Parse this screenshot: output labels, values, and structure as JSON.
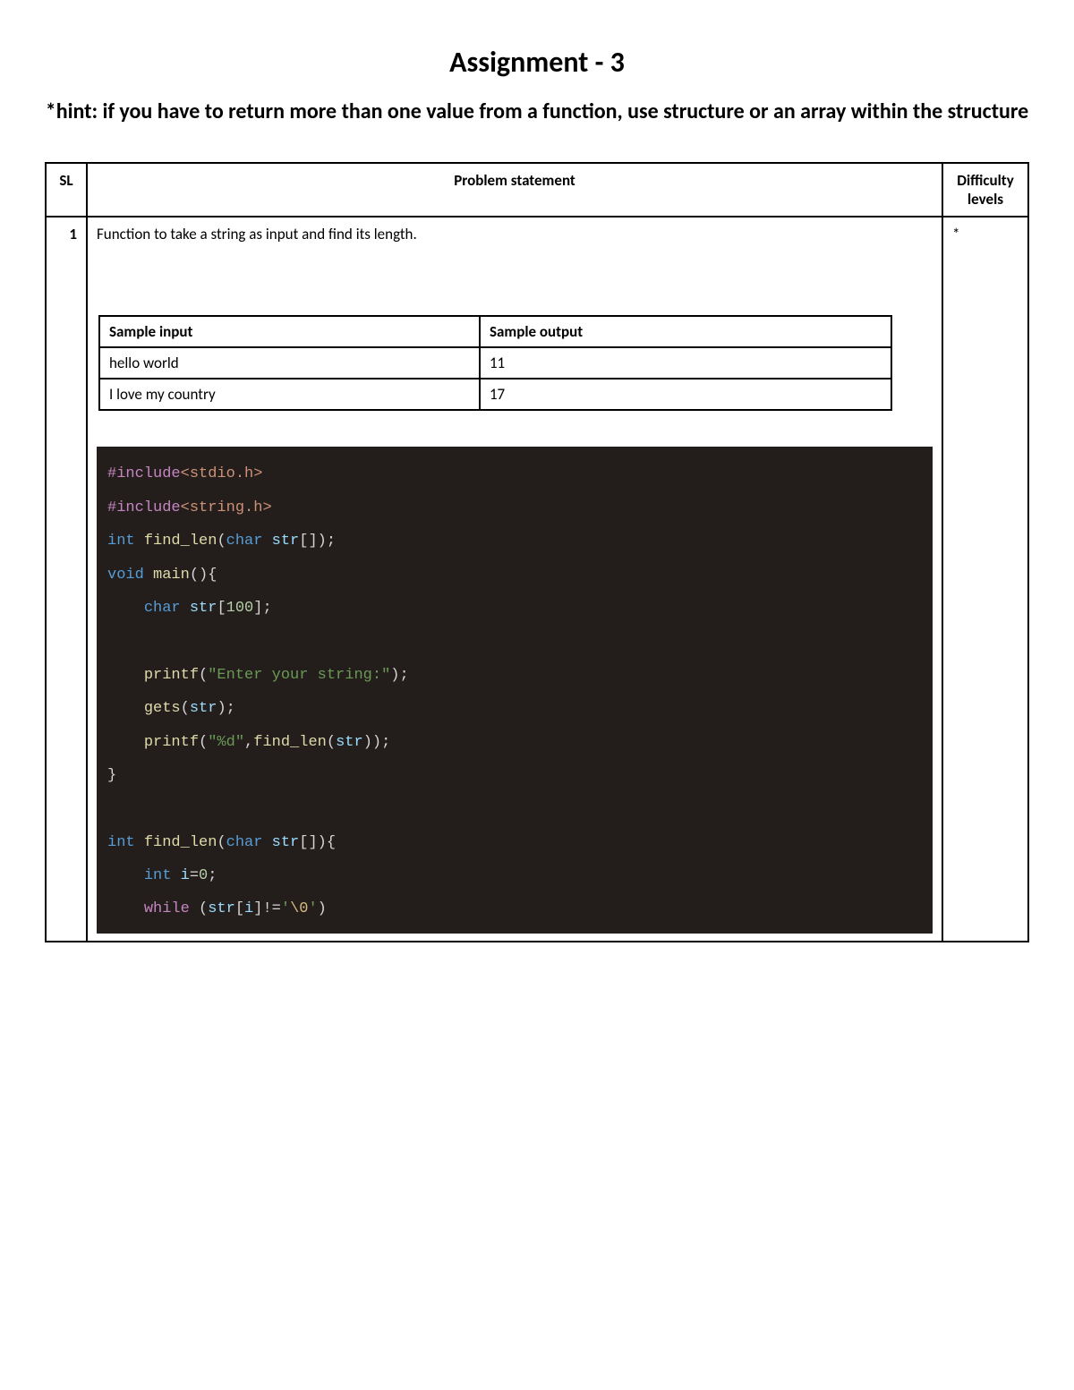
{
  "title": "Assignment - 3",
  "hint": "*hint: if you have to return more than one value from a function, use structure or an array within the structure",
  "table": {
    "headers": {
      "sl": "SL",
      "problem": "Problem statement",
      "difficulty": "Difficulty levels"
    },
    "row": {
      "sl": "1",
      "problem": "Function to take a string as input and find its length.",
      "difficulty": "*",
      "sample_headers": {
        "input": "Sample input",
        "output": "Sample output"
      },
      "samples": [
        {
          "input": "hello world",
          "output": "11"
        },
        {
          "input": "I love my country",
          "output": "17"
        }
      ]
    }
  },
  "code": {
    "include1_a": "#include",
    "include1_b": "<stdio.h>",
    "include2_a": "#include",
    "include2_b": "<string.h>",
    "int": "int",
    "void": "void",
    "char": "char",
    "while": "while",
    "find_len": "find_len",
    "main": "main",
    "printf": "printf",
    "gets": "gets",
    "str": "str",
    "i": "i",
    "n100": "100",
    "n0": "0",
    "s_enter": "\"Enter your string:\"",
    "s_fmt": "\"%d\"",
    "s_nul_open": "'",
    "s_nul_esc": "\\0",
    "s_nul_close": "'",
    "p_decl_open": "(",
    "p_decl_mid": " ",
    "p_arr": "[]);",
    "p_main_sig": "(){",
    "p_decl100": "[",
    "p_decl100b": "];",
    "p_call_open": "(",
    "p_call_close": ");",
    "p_semi": ";",
    "p_comma": ",",
    "p_close_brace": "}",
    "p_findlen_sig_open": "(",
    "p_findlen_sig_arr": "[]){",
    "p_assign": "=",
    "p_while_open": " (",
    "p_idx_open": "[",
    "p_idx_close": "]!=",
    "p_while_close": ")"
  },
  "style": {
    "code_bg": "#231e1c",
    "page_bg": "#ffffff",
    "text_color": "#000000"
  }
}
